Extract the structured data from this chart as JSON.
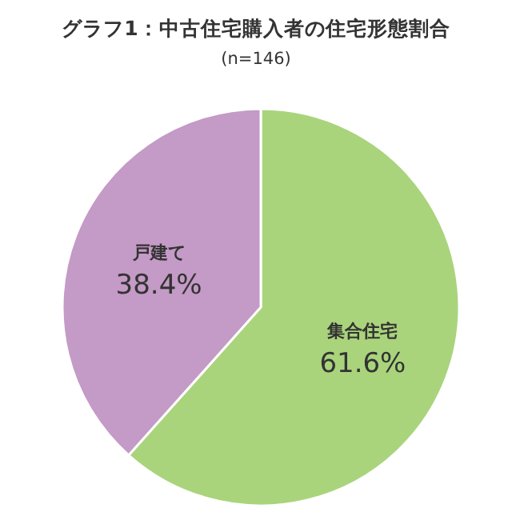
{
  "chart_data": {
    "type": "pie",
    "title": "グラフ1：中古住宅購入者の住宅形態割合",
    "subtitle": "(n=146)",
    "categories": [
      "集合住宅",
      "戸建て"
    ],
    "values": [
      61.6,
      38.4
    ],
    "colors": [
      "#a9d47c",
      "#c49ac6"
    ],
    "value_labels": [
      "61.6%",
      "38.4%"
    ]
  }
}
